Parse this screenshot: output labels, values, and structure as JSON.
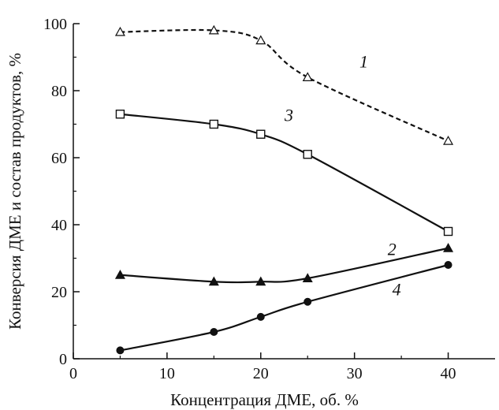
{
  "chart_data": {
    "type": "line",
    "xlabel": "Концентрация ДМЕ, об. %",
    "ylabel": "Конверсия ДМЕ и состав продуктов, %",
    "xlim": [
      0,
      45
    ],
    "ylim": [
      0,
      100
    ],
    "xticks": [
      0,
      10,
      20,
      30,
      40
    ],
    "yticks": [
      0,
      20,
      40,
      60,
      80,
      100
    ],
    "grid": false,
    "legend": "none",
    "series": [
      {
        "name": "1",
        "marker": "open-triangle",
        "line": "dashed",
        "x": [
          5,
          15,
          20,
          25,
          40
        ],
        "y": [
          97.5,
          98,
          95,
          84,
          65
        ]
      },
      {
        "name": "2",
        "marker": "filled-triangle",
        "line": "solid",
        "x": [
          5,
          15,
          20,
          25,
          40
        ],
        "y": [
          25,
          23,
          23,
          24,
          33
        ]
      },
      {
        "name": "3",
        "marker": "open-square",
        "line": "solid",
        "x": [
          5,
          15,
          20,
          25,
          40
        ],
        "y": [
          73,
          70,
          67,
          61,
          38
        ]
      },
      {
        "name": "4",
        "marker": "filled-circle",
        "line": "solid",
        "x": [
          5,
          15,
          20,
          25,
          40
        ],
        "y": [
          2.5,
          8,
          12.5,
          17,
          28
        ]
      }
    ],
    "curve_labels": [
      {
        "text": "1",
        "x": 31,
        "y": 87
      },
      {
        "text": "2",
        "x": 34,
        "y": 31
      },
      {
        "text": "3",
        "x": 23,
        "y": 71
      },
      {
        "text": "4",
        "x": 34.5,
        "y": 19
      }
    ]
  }
}
